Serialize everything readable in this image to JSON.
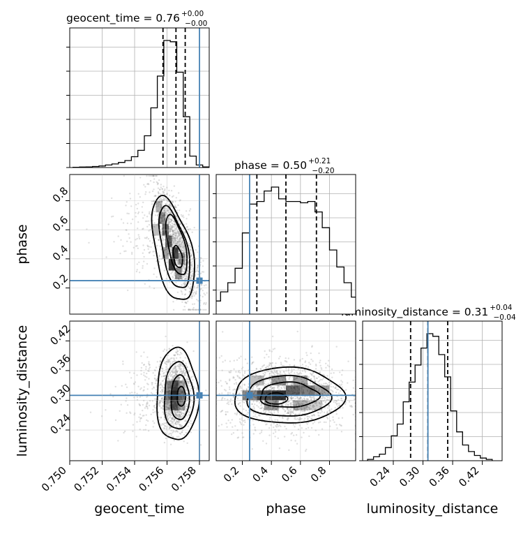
{
  "chart_data": {
    "type": "corner",
    "parameters": [
      "geocent_time",
      "phase",
      "luminosity_distance"
    ],
    "titles": [
      {
        "param": "geocent_time",
        "text": "geocent_time = 0.76",
        "upper": "+0.00",
        "lower": "−0.00"
      },
      {
        "param": "phase",
        "text": "phase = 0.50",
        "upper": "+0.21",
        "lower": "−0.20"
      },
      {
        "param": "luminosity_distance",
        "text": "luminosity_distance = 0.31",
        "upper": "+0.04",
        "lower": "−0.04"
      }
    ],
    "axis_labels": {
      "x": [
        "geocent_time",
        "phase",
        "luminosity_distance"
      ],
      "y": [
        "phase",
        "luminosity_distance"
      ]
    },
    "ranges": {
      "geocent_time": [
        0.75,
        0.7586
      ],
      "phase": [
        0.02,
        0.98
      ],
      "luminosity_distance": [
        0.178,
        0.46
      ]
    },
    "ticks": {
      "geocent_time": [
        "0.750",
        "0.752",
        "0.754",
        "0.756",
        "0.758"
      ],
      "phase": [
        "0.2",
        "0.4",
        "0.6",
        "0.8"
      ],
      "luminosity_distance": [
        "0.24",
        "0.30",
        "0.36",
        "0.42"
      ]
    },
    "injection": {
      "geocent_time": 0.758,
      "phase": 0.25,
      "luminosity_distance": 0.31
    },
    "quantiles": {
      "geocent_time": [
        0.75575,
        0.75655,
        0.75712
      ],
      "phase": [
        0.3,
        0.5,
        0.71
      ],
      "luminosity_distance": [
        0.275,
        0.31,
        0.35
      ]
    },
    "histograms": {
      "geocent_time": {
        "edges": [
          0.7502,
          0.7506,
          0.751,
          0.7514,
          0.7518,
          0.7522,
          0.7526,
          0.753,
          0.7534,
          0.7538,
          0.7542,
          0.7546,
          0.755,
          0.7554,
          0.7558,
          0.7562,
          0.7566,
          0.757,
          0.7574,
          0.7578,
          0.7582,
          0.7586
        ],
        "counts": [
          0.2,
          0.4,
          0.5,
          0.8,
          1.2,
          2.0,
          2.8,
          4.0,
          5.5,
          8.5,
          13.5,
          25.0,
          47.0,
          72.0,
          100.0,
          99.0,
          75.0,
          40.0,
          9.0,
          2.0,
          0.5
        ]
      },
      "phase": {
        "edges": [
          0.0,
          0.05,
          0.1,
          0.15,
          0.2,
          0.25,
          0.3,
          0.35,
          0.4,
          0.45,
          0.5,
          0.55,
          0.6,
          0.65,
          0.7,
          0.75,
          0.8,
          0.85,
          0.9,
          0.95,
          1.0
        ],
        "counts": [
          10.0,
          17.0,
          24.0,
          35.0,
          62.0,
          84.0,
          86.0,
          94.0,
          97.0,
          88.0,
          86.0,
          86.0,
          85.0,
          86.0,
          78.0,
          66.0,
          49.0,
          36.0,
          24.0,
          13.0
        ]
      },
      "luminosity_distance": {
        "edges": [
          0.188,
          0.2,
          0.212,
          0.224,
          0.236,
          0.248,
          0.26,
          0.272,
          0.284,
          0.296,
          0.308,
          0.32,
          0.332,
          0.344,
          0.356,
          0.368,
          0.38,
          0.392,
          0.404,
          0.416,
          0.428,
          0.44
        ],
        "counts": [
          1.0,
          3.0,
          5.0,
          10.0,
          19.0,
          28.0,
          45.0,
          60.0,
          73.0,
          86.0,
          97.0,
          95.0,
          81.0,
          64.0,
          38.0,
          22.0,
          12.0,
          7.0,
          4.0,
          2.0,
          1.0
        ]
      }
    },
    "grid": true,
    "colors": {
      "truth": "#4682b4",
      "contour": "#000000",
      "density": "#000000",
      "scatter": "#9a9a9a",
      "grid": "#b0b0b0"
    }
  }
}
